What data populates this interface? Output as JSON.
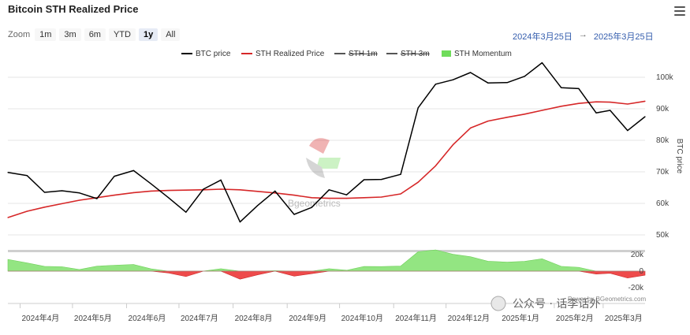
{
  "header": {
    "title": "Bitcoin STH Realized Price",
    "zoom_label": "Zoom",
    "zoom_buttons": [
      "1m",
      "3m",
      "6m",
      "YTD",
      "1y",
      "All"
    ],
    "zoom_active": "1y",
    "range_from": "2024年3月25日",
    "range_arrow": "→",
    "range_to": "2025年3月25日"
  },
  "watermark": {
    "center_text": "Bgeometrics",
    "bottom_text": "Power by BGeometrics.com",
    "wechat_text": "公众号 · 话李话外"
  },
  "chart_data": {
    "type": "line",
    "legend": [
      {
        "name": "BTC price",
        "color": "#000000",
        "style": "line",
        "enabled": true
      },
      {
        "name": "STH Realized Price",
        "color": "#d62728",
        "style": "line",
        "enabled": true
      },
      {
        "name": "STH 1m",
        "color": "#555555",
        "style": "line",
        "enabled": false
      },
      {
        "name": "STH 3m",
        "color": "#555555",
        "style": "line",
        "enabled": false
      },
      {
        "name": "STH Momentum",
        "color": "#6fdc5a",
        "style": "area",
        "enabled": true
      }
    ],
    "right_axis_title": "BTC price",
    "price_ticks": [
      "100k",
      "90k",
      "80k",
      "70k",
      "60k",
      "50k"
    ],
    "momentum_ticks": [
      "20k",
      "0",
      "-20k"
    ],
    "x_ticks": [
      "2024年4月",
      "2024年5月",
      "2024年6月",
      "2024年7月",
      "2024年8月",
      "2024年9月",
      "2024年10月",
      "2024年11月",
      "2024年12月",
      "2025年1月",
      "2025年2月",
      "2025年3月"
    ],
    "x": [
      "2024-03-25",
      "2024-04-05",
      "2024-04-15",
      "2024-04-25",
      "2024-05-05",
      "2024-05-15",
      "2024-05-25",
      "2024-06-05",
      "2024-06-15",
      "2024-06-25",
      "2024-07-05",
      "2024-07-15",
      "2024-07-25",
      "2024-08-05",
      "2024-08-15",
      "2024-08-25",
      "2024-09-05",
      "2024-09-15",
      "2024-09-25",
      "2024-10-05",
      "2024-10-15",
      "2024-10-25",
      "2024-11-05",
      "2024-11-15",
      "2024-11-25",
      "2024-12-05",
      "2024-12-15",
      "2024-12-25",
      "2025-01-05",
      "2025-01-15",
      "2025-01-25",
      "2025-02-05",
      "2025-02-15",
      "2025-02-25",
      "2025-03-05",
      "2025-03-15",
      "2025-03-25"
    ],
    "series": [
      {
        "name": "BTC price",
        "values": [
          69800,
          68800,
          63500,
          64000,
          63300,
          61500,
          68600,
          70400,
          66200,
          61800,
          57200,
          64500,
          67400,
          54100,
          59300,
          63900,
          56500,
          58700,
          64300,
          62700,
          67500,
          67600,
          69200,
          90300,
          97800,
          99200,
          101500,
          98200,
          98300,
          100300,
          104600,
          96700,
          96400,
          88700,
          89500,
          83100,
          87500
        ]
      },
      {
        "name": "STH Realized Price",
        "values": [
          55500,
          57500,
          58800,
          59900,
          61000,
          61800,
          62600,
          63400,
          63900,
          64100,
          64200,
          64300,
          64500,
          64300,
          63800,
          63300,
          62600,
          61800,
          61600,
          61600,
          61800,
          62000,
          63000,
          66700,
          71900,
          78600,
          83900,
          86100,
          87300,
          88300,
          89500,
          90800,
          91700,
          92200,
          92100,
          91500,
          92400
        ]
      },
      {
        "name": "STH Momentum",
        "values": [
          14300,
          10000,
          5800,
          5400,
          2000,
          6100,
          7200,
          8100,
          2800,
          -2200,
          -6600,
          100,
          2900,
          -9800,
          -4500,
          600,
          -6100,
          -3100,
          2900,
          1100,
          5700,
          5600,
          6200,
          23600,
          25900,
          20600,
          17600,
          12100,
          11000,
          12000,
          15100,
          5900,
          4700,
          -3500,
          -2600,
          -8400,
          -4900
        ]
      }
    ],
    "price_ylim": [
      45000,
      105000
    ],
    "momentum_ylim": [
      -25000,
      25000
    ],
    "grid": "horizontal",
    "legend_position": "top"
  }
}
